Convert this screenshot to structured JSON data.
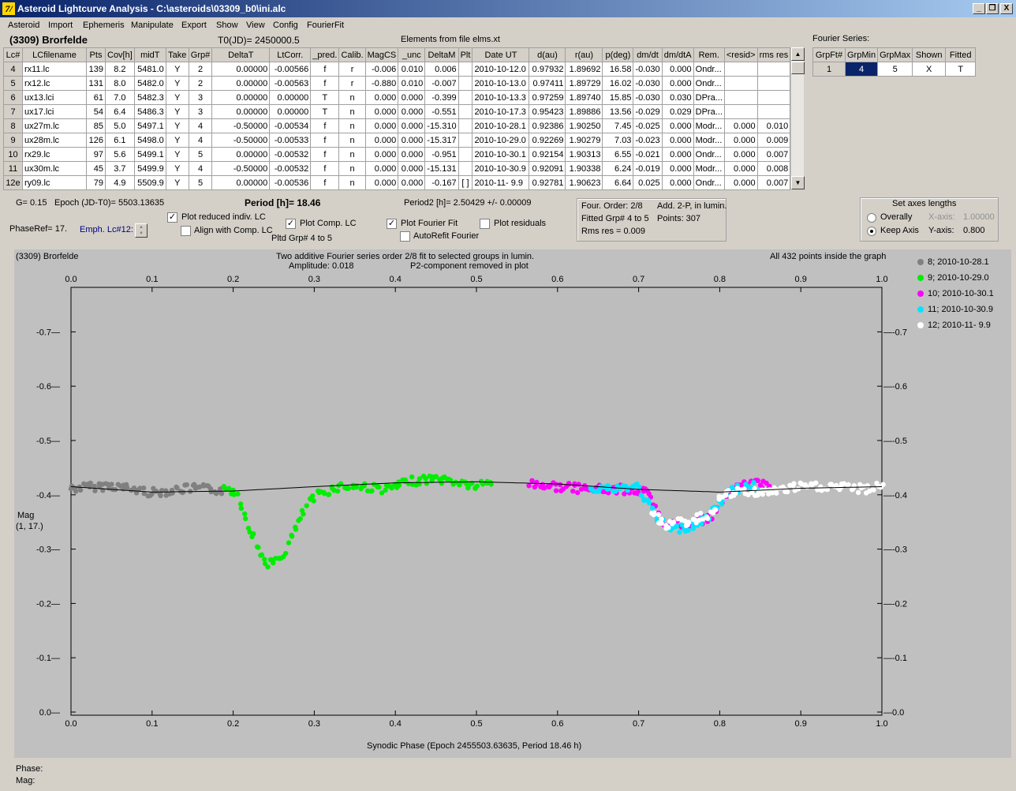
{
  "window": {
    "title": "Asteroid Lightcurve Analysis - C:\\asteroids\\03309_b0\\ini.alc",
    "app_icon": "7/",
    "controls": [
      "_",
      "❐",
      "X"
    ]
  },
  "menu": [
    "Asteroid",
    "Import",
    "Ephemeris",
    "Manipulate",
    "Export",
    "Show",
    "View",
    "Config",
    "FourierFit"
  ],
  "header": {
    "asteroid": "(3309) Brorfelde",
    "t0": "T0(JD)= 2450000.5",
    "elements": "Elements from file elms.xt",
    "fourier_title": "Fourier Series:"
  },
  "lc_table": {
    "columns": [
      "Lc#",
      "LCfilename",
      "Pts",
      "Cov[h]",
      "midT",
      "Take",
      "Grp#",
      "DeltaT",
      "LtCorr.",
      "_pred.",
      "Calib.",
      "MagCS",
      "_unc",
      "DeltaM",
      "Plt",
      "Date UT",
      "d(au)",
      "r(au)",
      "p(deg)",
      "dm/dt",
      "dm/dtA",
      "Rem.",
      "<resid>",
      "rms res"
    ],
    "rows": [
      [
        "4",
        "rx11.lc",
        "139",
        "8.2",
        "5481.0",
        "Y",
        "2",
        "0.00000",
        "-0.00566",
        "f",
        "r",
        "-0.006",
        "0.010",
        "0.006",
        "",
        "2010-10-12.0",
        "0.97932",
        "1.89692",
        "16.58",
        "-0.030",
        "0.000",
        "Ondr...",
        "",
        ""
      ],
      [
        "5",
        "rx12.lc",
        "131",
        "8.0",
        "5482.0",
        "Y",
        "2",
        "0.00000",
        "-0.00563",
        "f",
        "r",
        "-0.880",
        "0.010",
        "-0.007",
        "",
        "2010-10-13.0",
        "0.97411",
        "1.89729",
        "16.02",
        "-0.030",
        "0.000",
        "Ondr...",
        "",
        ""
      ],
      [
        "6",
        "ux13.lci",
        "61",
        "7.0",
        "5482.3",
        "Y",
        "3",
        "0.00000",
        "0.00000",
        "T",
        "n",
        "0.000",
        "0.000",
        "-0.399",
        "",
        "2010-10-13.3",
        "0.97259",
        "1.89740",
        "15.85",
        "-0.030",
        "0.030",
        "DPra...",
        "",
        ""
      ],
      [
        "7",
        "ux17.lci",
        "54",
        "6.4",
        "5486.3",
        "Y",
        "3",
        "0.00000",
        "0.00000",
        "T",
        "n",
        "0.000",
        "0.000",
        "-0.551",
        "",
        "2010-10-17.3",
        "0.95423",
        "1.89886",
        "13.56",
        "-0.029",
        "0.029",
        "DPra...",
        "",
        ""
      ],
      [
        "8",
        "ux27m.lc",
        "85",
        "5.0",
        "5497.1",
        "Y",
        "4",
        "-0.50000",
        "-0.00534",
        "f",
        "n",
        "0.000",
        "0.000",
        "-15.310",
        "",
        "2010-10-28.1",
        "0.92386",
        "1.90250",
        "7.45",
        "-0.025",
        "0.000",
        "Modr...",
        "0.000",
        "0.010"
      ],
      [
        "9",
        "ux28m.lc",
        "126",
        "6.1",
        "5498.0",
        "Y",
        "4",
        "-0.50000",
        "-0.00533",
        "f",
        "n",
        "0.000",
        "0.000",
        "-15.317",
        "",
        "2010-10-29.0",
        "0.92269",
        "1.90279",
        "7.03",
        "-0.023",
        "0.000",
        "Modr...",
        "0.000",
        "0.009"
      ],
      [
        "10",
        "rx29.lc",
        "97",
        "5.6",
        "5499.1",
        "Y",
        "5",
        "0.00000",
        "-0.00532",
        "f",
        "n",
        "0.000",
        "0.000",
        "-0.951",
        "",
        "2010-10-30.1",
        "0.92154",
        "1.90313",
        "6.55",
        "-0.021",
        "0.000",
        "Ondr...",
        "0.000",
        "0.007"
      ],
      [
        "11",
        "ux30m.lc",
        "45",
        "3.7",
        "5499.9",
        "Y",
        "4",
        "-0.50000",
        "-0.00532",
        "f",
        "n",
        "0.000",
        "0.000",
        "-15.131",
        "",
        "2010-10-30.9",
        "0.92091",
        "1.90338",
        "6.24",
        "-0.019",
        "0.000",
        "Modr...",
        "0.000",
        "0.008"
      ],
      [
        "12e",
        "ry09.lc",
        "79",
        "4.9",
        "5509.9",
        "Y",
        "5",
        "0.00000",
        "-0.00536",
        "f",
        "n",
        "0.000",
        "0.000",
        "-0.167",
        "[ ]",
        "2010-11- 9.9",
        "0.92781",
        "1.90623",
        "6.64",
        "0.025",
        "0.000",
        "Ondr...",
        "0.000",
        "0.007"
      ]
    ]
  },
  "fourier_table": {
    "columns": [
      "GrpFt#",
      "GrpMin",
      "GrpMax",
      "Shown",
      "Fitted"
    ],
    "row": [
      "1",
      "4",
      "5",
      "X",
      "T"
    ]
  },
  "info": {
    "g": "G= 0.15",
    "epoch": "Epoch (JD-T0)= 5503.13635",
    "period": "Period [h]= 18.46",
    "period2": "Period2 [h]= 2.50429 +/- 0.00009",
    "phaseref": "PhaseRef= 17.",
    "emph": "Emph. Lc#12:",
    "pltd_grp": "Pltd Grp#  4   to   5"
  },
  "options": {
    "plot_reduced": {
      "label": "Plot reduced indiv. LC",
      "checked": true
    },
    "align_comp": {
      "label": "Align with Comp. LC",
      "checked": false
    },
    "plot_comp": {
      "label": "Plot Comp. LC",
      "checked": true
    },
    "plot_fourier": {
      "label": "Plot Fourier Fit",
      "checked": true
    },
    "autorefit": {
      "label": "AutoRefit Fourier",
      "checked": false
    },
    "plot_resid": {
      "label": "Plot residuals",
      "checked": false
    }
  },
  "fit_box": {
    "order": "Four. Order:  2/8",
    "add": "Add. 2-P, in lumin.",
    "fitted": "Fitted Grp# 4 to 5",
    "points": "Points: 307",
    "rms": "Rms res      = 0.009"
  },
  "axes_box": {
    "title": "Set axes lengths",
    "overally": "Overally",
    "keep": "Keep Axis",
    "xaxis_label": "X-axis:",
    "xaxis_val": "1.00000",
    "yaxis_label": "Y-axis:",
    "yaxis_val": "0.800",
    "selected": "keep"
  },
  "plot": {
    "name": "(3309) Brorfelde",
    "line1": "Two additive Fourier series order 2/8 fit to selected groups in lumin.",
    "amplitude": "Amplitude: 0.018",
    "p2": "P2-component removed in plot",
    "inside": "All 432 points inside the graph",
    "ylabel_line1": "Mag",
    "ylabel_line2": "(1, 17.)",
    "xlabel": "Synodic Phase (Epoch 2455503.63635, Period 18.46 h)",
    "x_ticks": [
      "0.0",
      "0.1",
      "0.2",
      "0.3",
      "0.4",
      "0.5",
      "0.6",
      "0.7",
      "0.8",
      "0.9",
      "1.0"
    ],
    "y_ticks": [
      "-0.7",
      "-0.6",
      "-0.5",
      "-0.4",
      "-0.3",
      "-0.2",
      "-0.1",
      "0.0"
    ],
    "bg": "#bdbdbd",
    "line_color": "#000000"
  },
  "chart_data": {
    "type": "scatter",
    "xlabel": "Synodic Phase (Epoch 2455503.63635, Period 18.46 h)",
    "ylabel": "Mag (1, 17.)",
    "xlim": [
      0.0,
      1.0
    ],
    "ylim": [
      -0.8,
      0.0
    ],
    "y_inverted": true,
    "grid": false,
    "legend_position": "right",
    "series": [
      {
        "name": "8; 2010-10-28.1",
        "color": "#808080",
        "segments": [
          [
            0.0,
            -0.412
          ],
          [
            0.05,
            -0.417
          ],
          [
            0.1,
            -0.404
          ],
          [
            0.15,
            -0.412
          ],
          [
            0.19,
            -0.408
          ]
        ]
      },
      {
        "name": "9; 2010-10-29.0",
        "color": "#00ee00",
        "segments": [
          [
            0.19,
            -0.412
          ],
          [
            0.205,
            -0.405
          ],
          [
            0.215,
            -0.36
          ],
          [
            0.228,
            -0.31
          ],
          [
            0.24,
            -0.275
          ],
          [
            0.252,
            -0.275
          ],
          [
            0.262,
            -0.29
          ],
          [
            0.275,
            -0.33
          ],
          [
            0.29,
            -0.38
          ],
          [
            0.305,
            -0.4
          ],
          [
            0.33,
            -0.415
          ],
          [
            0.36,
            -0.415
          ],
          [
            0.39,
            -0.41
          ],
          [
            0.42,
            -0.425
          ],
          [
            0.45,
            -0.43
          ],
          [
            0.47,
            -0.425
          ],
          [
            0.5,
            -0.415
          ],
          [
            0.52,
            -0.425
          ]
        ]
      },
      {
        "name": "10; 2010-10-30.1",
        "color": "#ff00ff",
        "segments": [
          [
            0.565,
            -0.42
          ],
          [
            0.6,
            -0.415
          ],
          [
            0.64,
            -0.41
          ],
          [
            0.68,
            -0.41
          ],
          [
            0.71,
            -0.405
          ],
          [
            0.72,
            -0.375
          ],
          [
            0.73,
            -0.345
          ],
          [
            0.76,
            -0.345
          ],
          [
            0.79,
            -0.36
          ],
          [
            0.8,
            -0.385
          ],
          [
            0.815,
            -0.41
          ],
          [
            0.84,
            -0.42
          ],
          [
            0.86,
            -0.42
          ]
        ]
      },
      {
        "name": "11; 2010-10-30.9",
        "color": "#00e5ff",
        "segments": [
          [
            0.64,
            -0.415
          ],
          [
            0.67,
            -0.41
          ],
          [
            0.7,
            -0.415
          ],
          [
            0.72,
            -0.36
          ],
          [
            0.74,
            -0.335
          ],
          [
            0.77,
            -0.345
          ],
          [
            0.79,
            -0.365
          ],
          [
            0.81,
            -0.405
          ],
          [
            0.83,
            -0.415
          ],
          [
            0.85,
            -0.415
          ]
        ]
      },
      {
        "name": "12; 2010-11- 9.9",
        "color": "#ffffff",
        "segments": [
          [
            0.715,
            -0.375
          ],
          [
            0.73,
            -0.345
          ],
          [
            0.76,
            -0.35
          ],
          [
            0.79,
            -0.365
          ],
          [
            0.8,
            -0.395
          ],
          [
            0.82,
            -0.405
          ],
          [
            0.86,
            -0.405
          ],
          [
            0.9,
            -0.415
          ],
          [
            0.94,
            -0.415
          ],
          [
            0.98,
            -0.41
          ],
          [
            1.0,
            -0.415
          ]
        ]
      }
    ],
    "fourier_fit": [
      [
        0.0,
        -0.415
      ],
      [
        0.1,
        -0.405
      ],
      [
        0.2,
        -0.407
      ],
      [
        0.3,
        -0.415
      ],
      [
        0.4,
        -0.422
      ],
      [
        0.5,
        -0.424
      ],
      [
        0.6,
        -0.42
      ],
      [
        0.7,
        -0.41
      ],
      [
        0.8,
        -0.405
      ],
      [
        0.9,
        -0.412
      ],
      [
        1.0,
        -0.415
      ]
    ]
  },
  "status": {
    "phase": "Phase:",
    "mag": "Mag:"
  }
}
